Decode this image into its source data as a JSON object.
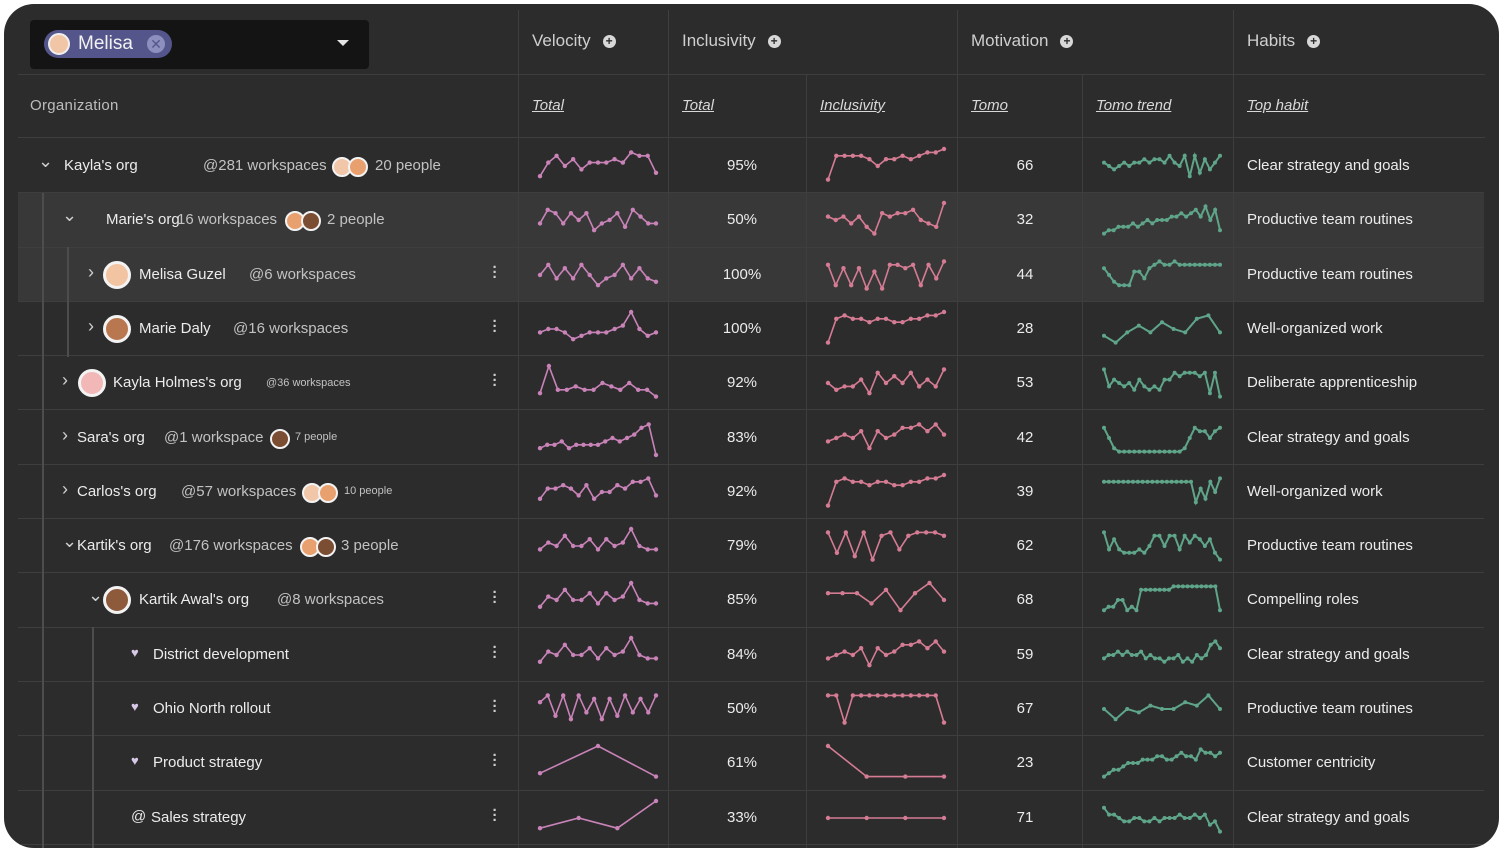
{
  "picker": {
    "chip_label": "Melisa",
    "chip_remove_icon": "close-icon",
    "dropdown_icon": "chevron-down-icon"
  },
  "header": {
    "groups": {
      "velocity": "Velocity",
      "inclusivity": "Inclusivity",
      "motivation": "Motivation",
      "habits": "Habits"
    },
    "add_icon": "plus-circle-icon",
    "organization": "Organization",
    "columns": {
      "velocity_total": "Total",
      "inclusivity_total": "Total",
      "inclusivity": "Inclusivity",
      "tomo": "Tomo",
      "tomo_trend": "Tomo trend",
      "top_habit": "Top habit"
    }
  },
  "colors": {
    "velocity_line": "#c983b8",
    "inclusivity_line": "#d57c94",
    "trend_line": "#5fa58a",
    "chip": "#54558a"
  },
  "rows": [
    {
      "name": "Kayla's org",
      "workspaces": "@281 workspaces",
      "people": "20 people",
      "inclusivity_total": "95%",
      "tomo": "66",
      "top_habit": "Clear strategy and goals",
      "velocity_series": [
        2,
        6,
        8,
        5,
        7,
        4,
        6,
        6,
        6,
        7,
        6,
        9,
        8,
        8,
        3
      ],
      "inclusivity_series": [
        1,
        8,
        8,
        8,
        8,
        7,
        5,
        7,
        7,
        8,
        7,
        8,
        9,
        9,
        10
      ],
      "trend_series": [
        6,
        5,
        4,
        5,
        6,
        5,
        6,
        6,
        7,
        6,
        7,
        7,
        6,
        8,
        6,
        5,
        8,
        2,
        8,
        3,
        7,
        4,
        6,
        8
      ]
    },
    {
      "name": "Marie's org",
      "workspaces": "16 workspaces",
      "people": "2 people",
      "inclusivity_total": "50%",
      "tomo": "32",
      "top_habit": "Productive team routines",
      "velocity_series": [
        4,
        8,
        7,
        4,
        7,
        5,
        7,
        2,
        4,
        5,
        7,
        3,
        8,
        6,
        4,
        4
      ],
      "inclusivity_series": [
        6,
        5,
        6,
        4,
        6,
        3,
        1,
        7,
        6,
        7,
        7,
        8,
        5,
        4,
        3,
        10
      ],
      "trend_series": [
        1,
        2,
        2,
        3,
        3,
        3,
        4,
        3,
        4,
        5,
        4,
        5,
        5,
        5,
        6,
        6,
        7,
        6,
        7,
        8,
        6,
        9,
        5,
        8,
        2
      ]
    },
    {
      "name": "Melisa Guzel",
      "workspaces": "@6 workspaces",
      "people": "",
      "inclusivity_total": "100%",
      "tomo": "44",
      "top_habit": "Productive team routines",
      "velocity_series": [
        5,
        8,
        4,
        7,
        4,
        8,
        5,
        2,
        4,
        5,
        8,
        4,
        7,
        4,
        3
      ],
      "inclusivity_series": [
        8,
        2,
        7,
        2,
        7,
        1,
        6,
        1,
        8,
        8,
        7,
        8,
        2,
        8,
        4,
        9
      ],
      "trend_series": [
        7,
        5,
        3,
        2,
        2,
        2,
        6,
        6,
        4,
        7,
        8,
        9,
        8,
        8,
        9,
        8,
        8,
        8,
        8,
        8,
        8,
        8,
        8,
        8
      ]
    },
    {
      "name": "Marie Daly",
      "workspaces": "@16 workspaces",
      "people": "",
      "inclusivity_total": "100%",
      "tomo": "28",
      "top_habit": "Well-organized work",
      "velocity_series": [
        4,
        5,
        5,
        4,
        2,
        3,
        4,
        4,
        4,
        5,
        6,
        10,
        5,
        3,
        4
      ],
      "inclusivity_series": [
        1,
        8,
        9,
        8,
        8,
        7,
        8,
        8,
        7,
        7,
        8,
        8,
        9,
        9,
        10
      ],
      "trend_series": [
        3,
        1,
        4,
        6,
        4,
        7,
        5,
        4,
        8,
        9,
        4
      ]
    },
    {
      "name": "Kayla Holmes's org",
      "workspaces": "@36 workspaces",
      "people": "",
      "inclusivity_total": "92%",
      "tomo": "53",
      "top_habit": "Deliberate apprenticeship",
      "velocity_series": [
        2,
        10,
        3,
        3,
        4,
        3,
        3,
        5,
        4,
        3,
        5,
        3,
        3,
        1
      ],
      "inclusivity_series": [
        5,
        3,
        4,
        4,
        6,
        2,
        8,
        5,
        7,
        5,
        8,
        4,
        6,
        4,
        9
      ],
      "trend_series": [
        9,
        4,
        6,
        5,
        4,
        5,
        3,
        6,
        4,
        3,
        4,
        3,
        6,
        6,
        8,
        7,
        8,
        8,
        8,
        7,
        8,
        2,
        8,
        1
      ]
    },
    {
      "name": "Sara's org",
      "workspaces": "@1 workspace",
      "people": "7 people",
      "inclusivity_total": "83%",
      "tomo": "42",
      "top_habit": "Clear strategy and goals",
      "velocity_series": [
        2,
        3,
        3,
        4,
        2,
        3,
        3,
        3,
        3,
        4,
        5,
        4,
        5,
        6,
        8,
        9,
        0
      ],
      "inclusivity_series": [
        4,
        5,
        6,
        5,
        7,
        2,
        7,
        5,
        6,
        8,
        8,
        9,
        7,
        9,
        6
      ],
      "trend_series": [
        8,
        5,
        2,
        1,
        1,
        1,
        1,
        1,
        1,
        1,
        1,
        1,
        1,
        1,
        1,
        1,
        2,
        5,
        8,
        7,
        7,
        5,
        7,
        8
      ]
    },
    {
      "name": "Carlos's org",
      "workspaces": "@57 workspaces",
      "people": "10 people",
      "inclusivity_total": "92%",
      "tomo": "39",
      "top_habit": "Well-organized work",
      "velocity_series": [
        3,
        6,
        6,
        7,
        6,
        4,
        7,
        3,
        5,
        5,
        7,
        6,
        8,
        8,
        9,
        4
      ],
      "inclusivity_series": [
        1,
        8,
        9,
        8,
        8,
        7,
        8,
        8,
        7,
        7,
        8,
        8,
        9,
        9,
        10
      ],
      "trend_series": [
        8,
        8,
        8,
        8,
        8,
        8,
        8,
        8,
        8,
        8,
        8,
        8,
        8,
        8,
        8,
        8,
        8,
        8,
        8,
        2,
        6,
        3,
        8,
        5,
        9
      ]
    },
    {
      "name": "Kartik's org",
      "workspaces": "@176 workspaces",
      "people": "3 people",
      "inclusivity_total": "79%",
      "tomo": "62",
      "top_habit": "Productive team routines",
      "velocity_series": [
        4,
        6,
        5,
        8,
        5,
        5,
        7,
        4,
        7,
        5,
        6,
        10,
        5,
        4,
        4
      ],
      "inclusivity_series": [
        9,
        3,
        9,
        2,
        9,
        1,
        8,
        9,
        4,
        8,
        9,
        9,
        9,
        8
      ],
      "trend_series": [
        9,
        4,
        7,
        4,
        3,
        3,
        3,
        4,
        3,
        5,
        8,
        8,
        5,
        8,
        8,
        4,
        8,
        6,
        8,
        7,
        5,
        7,
        3,
        1
      ]
    },
    {
      "name": "Kartik Awal's org",
      "workspaces": "@8 workspaces",
      "people": "",
      "inclusivity_total": "85%",
      "tomo": "68",
      "top_habit": "Compelling roles",
      "velocity_series": [
        3,
        6,
        5,
        8,
        5,
        5,
        7,
        4,
        7,
        5,
        6,
        10,
        5,
        4,
        4
      ],
      "inclusivity_series": [
        7,
        7,
        7,
        4,
        8,
        2,
        7,
        10,
        5
      ],
      "trend_series": [
        2,
        3,
        3,
        5,
        5,
        2,
        3,
        2,
        8,
        8,
        8,
        8,
        8,
        8,
        8,
        9,
        9,
        9,
        9,
        9,
        9,
        9,
        9,
        9,
        9,
        2
      ]
    },
    {
      "name": "District development",
      "workspaces": "",
      "people": "",
      "inclusivity_total": "84%",
      "tomo": "59",
      "top_habit": "Clear strategy and goals",
      "velocity_series": [
        3,
        6,
        5,
        8,
        5,
        5,
        7,
        4,
        7,
        5,
        6,
        10,
        5,
        4,
        4
      ],
      "inclusivity_series": [
        4,
        5,
        6,
        5,
        7,
        2,
        7,
        5,
        6,
        8,
        8,
        9,
        7,
        9,
        6
      ],
      "trend_series": [
        4,
        5,
        5,
        6,
        5,
        6,
        5,
        5,
        6,
        4,
        5,
        4,
        4,
        3,
        4,
        4,
        5,
        3,
        4,
        3,
        5,
        4,
        5,
        8,
        9,
        7
      ]
    },
    {
      "name": "Ohio North rollout",
      "workspaces": "",
      "people": "",
      "inclusivity_total": "50%",
      "tomo": "67",
      "top_habit": "Productive team routines",
      "velocity_series": [
        7,
        9,
        3,
        9,
        2,
        9,
        4,
        8,
        2,
        8,
        3,
        9,
        4,
        8,
        4,
        9
      ],
      "inclusivity_series": [
        9,
        9,
        1,
        9,
        9,
        9,
        9,
        9,
        9,
        9,
        9,
        9,
        9,
        9,
        1
      ],
      "trend_series": [
        5,
        2,
        5,
        4,
        6,
        5,
        5,
        7,
        6,
        9,
        5
      ]
    },
    {
      "name": "Product strategy",
      "workspaces": "",
      "people": "",
      "inclusivity_total": "61%",
      "tomo": "23",
      "top_habit": "Customer centricity",
      "velocity_series": [
        2,
        10,
        1
      ],
      "inclusivity_series": [
        10,
        1,
        1,
        1
      ],
      "trend_series": [
        1,
        2,
        3,
        3,
        4,
        5,
        5,
        5,
        6,
        6,
        6,
        7,
        7,
        6,
        6,
        7,
        8,
        7,
        7,
        6,
        9,
        8,
        8,
        7,
        8
      ]
    },
    {
      "name": "Sales strategy",
      "workspaces": "",
      "people": "",
      "inclusivity_total": "33%",
      "tomo": "71",
      "top_habit": "Clear strategy and goals",
      "velocity_series": [
        2,
        5,
        2,
        10
      ],
      "inclusivity_series": [
        5,
        5,
        5,
        5
      ],
      "trend_series": [
        8,
        6,
        6,
        5,
        4,
        4,
        5,
        5,
        4,
        4,
        5,
        4,
        5,
        5,
        5,
        6,
        5,
        5,
        6,
        5,
        6,
        3,
        4,
        1
      ]
    }
  ]
}
